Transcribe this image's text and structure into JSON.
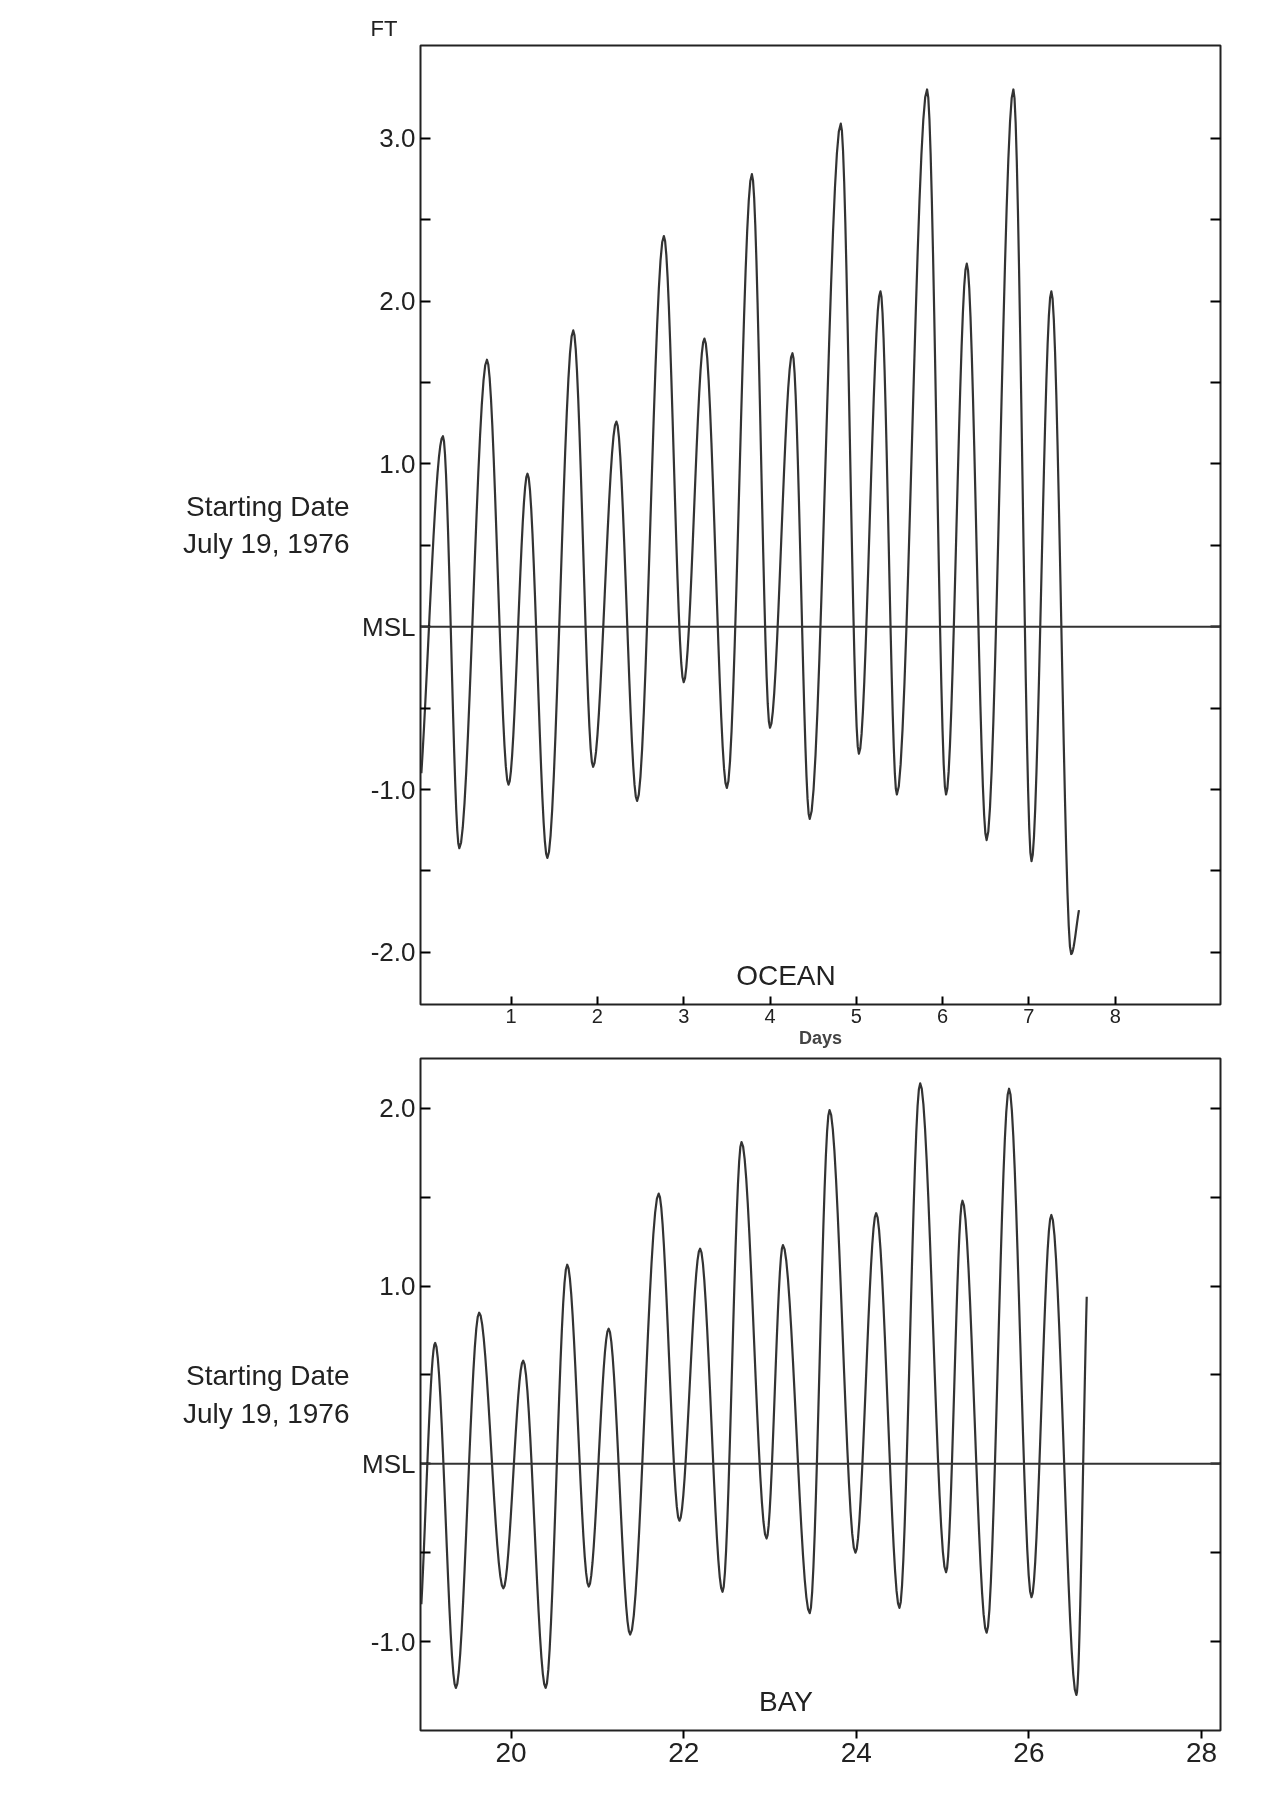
{
  "chart_data": [
    {
      "type": "line",
      "title": "OCEAN",
      "ylabel": "FT",
      "xlabel": "Days",
      "annotations": [
        "Starting Date\nJuly 19, 1976"
      ],
      "xlim": [
        -0.05,
        9.22
      ],
      "ylim": [
        -2.32,
        3.57
      ],
      "xticks": [
        1,
        2,
        3,
        4,
        5,
        6,
        7,
        8
      ],
      "yticks": [
        {
          "value": 3,
          "label": "3.0"
        },
        {
          "value": 2.5,
          "label": null
        },
        {
          "value": 2,
          "label": "2.0"
        },
        {
          "value": 1.5,
          "label": null
        },
        {
          "value": 1,
          "label": "1.0"
        },
        {
          "value": 0.5,
          "label": null
        },
        {
          "value": 0,
          "label": "MSL"
        },
        {
          "value": -0.5,
          "label": null
        },
        {
          "value": -1,
          "label": "-1.0"
        },
        {
          "value": -1.5,
          "label": null
        },
        {
          "value": -2,
          "label": "-2.0"
        }
      ],
      "ref_lines": [
        {
          "axis": "y",
          "value": 0,
          "color": "#333333"
        }
      ],
      "series": [
        {
          "color": "#333333",
          "x": [
            -0.04,
            0.21,
            0.4,
            0.72,
            0.97,
            1.19,
            1.42,
            1.72,
            1.95,
            2.22,
            2.46,
            2.77,
            3.0,
            3.24,
            3.5,
            3.79,
            4.0,
            4.26,
            4.46,
            4.82,
            5.03,
            5.28,
            5.47,
            5.82,
            6.04,
            6.28,
            6.51,
            6.82,
            7.03,
            7.26,
            7.49,
            7.58
          ],
          "values": [
            -0.9,
            1.17,
            -1.36,
            1.64,
            -0.97,
            0.94,
            -1.42,
            1.82,
            -0.86,
            1.26,
            -1.07,
            2.4,
            -0.34,
            1.77,
            -0.99,
            2.78,
            -0.62,
            1.68,
            -1.18,
            3.09,
            -0.78,
            2.06,
            -1.03,
            3.3,
            -1.03,
            2.23,
            -1.31,
            3.3,
            -1.44,
            2.06,
            -2.01,
            -1.74
          ]
        }
      ]
    },
    {
      "type": "line",
      "title": "BAY",
      "annotations": [
        "Starting Date\nJuly 19, 1976"
      ],
      "xlim": [
        18.95,
        28.22
      ],
      "ylim": [
        -1.5,
        2.28
      ],
      "xticks": [
        20,
        22,
        24,
        26,
        28
      ],
      "yticks": [
        {
          "value": 2,
          "label": "2.0"
        },
        {
          "value": 1.5,
          "label": null
        },
        {
          "value": 1,
          "label": "1.0"
        },
        {
          "value": 0.5,
          "label": null
        },
        {
          "value": 0,
          "label": "MSL"
        },
        {
          "value": -0.5,
          "label": null
        },
        {
          "value": -1,
          "label": "-1.0"
        }
      ],
      "ref_lines": [
        {
          "axis": "y",
          "value": 0,
          "color": "#333333"
        }
      ],
      "series": [
        {
          "color": "#333333",
          "x": [
            18.96,
            19.12,
            19.36,
            19.63,
            19.91,
            20.14,
            20.4,
            20.65,
            20.9,
            21.13,
            21.38,
            21.71,
            21.95,
            22.19,
            22.45,
            22.67,
            22.96,
            23.15,
            23.46,
            23.69,
            23.99,
            24.23,
            24.5,
            24.74,
            25.04,
            25.23,
            25.51,
            25.77,
            26.03,
            26.26,
            26.55,
            26.67
          ],
          "values": [
            -0.79,
            0.68,
            -1.26,
            0.85,
            -0.7,
            0.58,
            -1.26,
            1.12,
            -0.69,
            0.76,
            -0.96,
            1.52,
            -0.32,
            1.21,
            -0.72,
            1.81,
            -0.42,
            1.23,
            -0.84,
            1.99,
            -0.5,
            1.41,
            -0.81,
            2.14,
            -0.61,
            1.48,
            -0.95,
            2.11,
            -0.75,
            1.4,
            -1.3,
            0.94
          ]
        }
      ]
    }
  ]
}
